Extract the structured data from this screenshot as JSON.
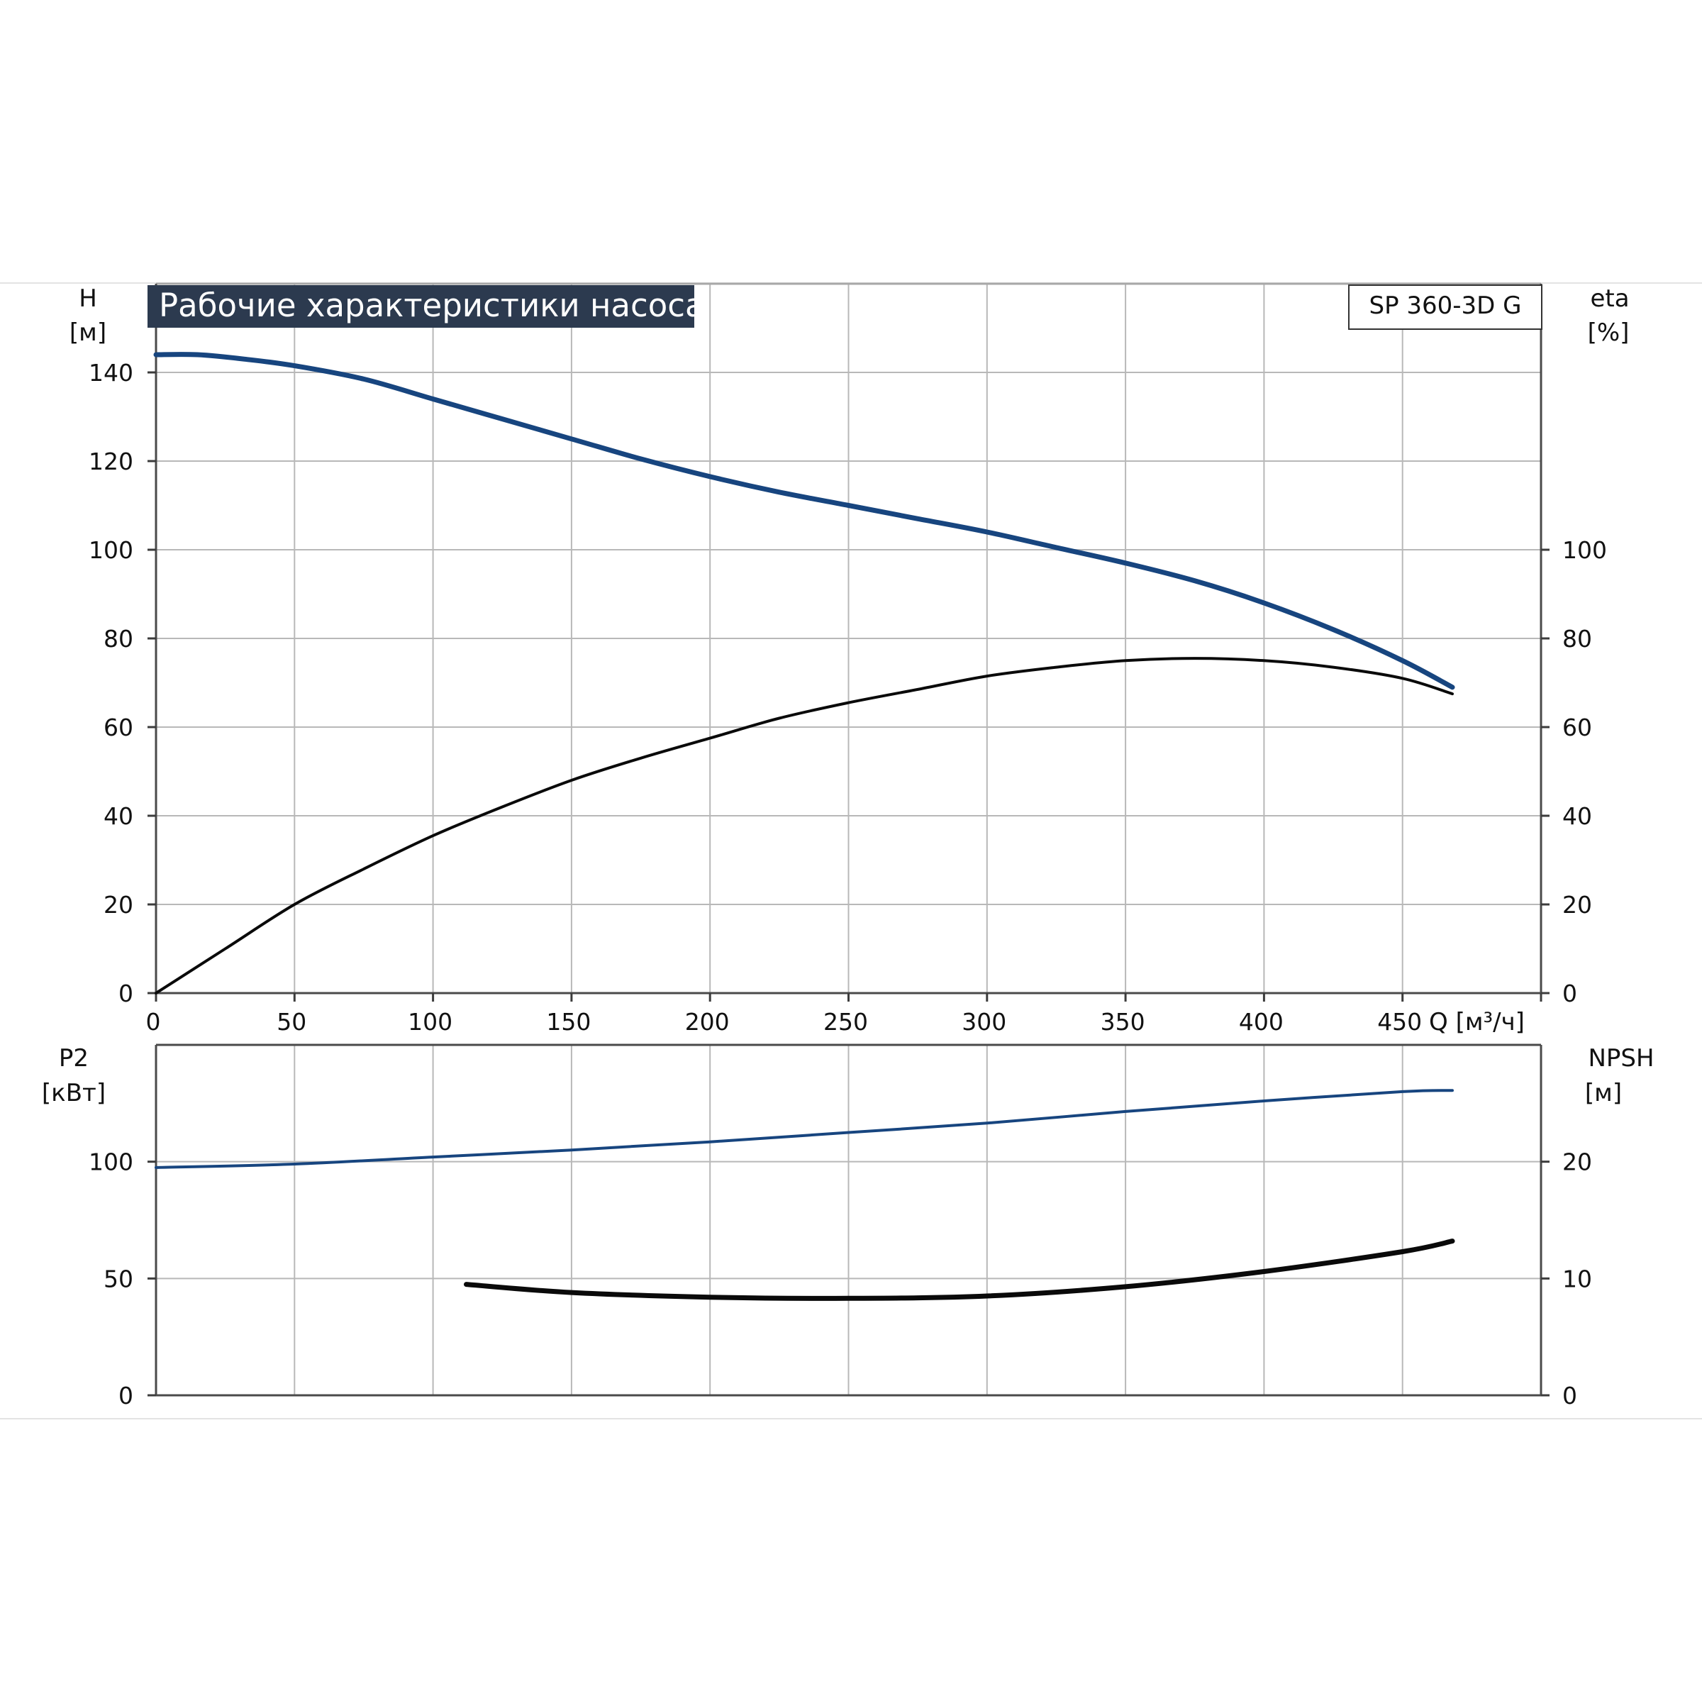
{
  "title": "Рабочие характеристики насоса",
  "model": "SP 360-3D G",
  "colors": {
    "blue_curve": "#17457f",
    "black_curve": "#0a0a0a",
    "title_bg": "#2c3a4f",
    "grid": "#b8b8b8"
  },
  "chart_data": [
    {
      "type": "line",
      "name": "upper",
      "x_label": "Q [м³/ч]",
      "xlim": [
        0,
        500
      ],
      "x_ticks": [
        0,
        50,
        100,
        150,
        200,
        250,
        300,
        350,
        400,
        450
      ],
      "y_left_label": "H",
      "y_left_unit": "[м]",
      "y_left_lim": [
        0,
        160
      ],
      "y_left_ticks": [
        0,
        20,
        40,
        60,
        80,
        100,
        120,
        140
      ],
      "y_right_label": "eta",
      "y_right_unit": "[%]",
      "y_right_lim": [
        0,
        160
      ],
      "y_right_ticks": [
        0,
        20,
        40,
        60,
        80,
        100
      ],
      "grid": true,
      "series": [
        {
          "axis": "left",
          "color": "#17457f",
          "points": [
            [
              0,
              144
            ],
            [
              15,
              144
            ],
            [
              32,
              143
            ],
            [
              50,
              141.5
            ],
            [
              75,
              138.5
            ],
            [
              100,
              134
            ],
            [
              125,
              129.5
            ],
            [
              150,
              125
            ],
            [
              175,
              120.5
            ],
            [
              200,
              116.5
            ],
            [
              225,
              113
            ],
            [
              250,
              110
            ],
            [
              275,
              107
            ],
            [
              300,
              104
            ],
            [
              325,
              100.5
            ],
            [
              350,
              97
            ],
            [
              375,
              93
            ],
            [
              400,
              88
            ],
            [
              425,
              82
            ],
            [
              450,
              75
            ],
            [
              468,
              69
            ]
          ]
        },
        {
          "axis": "right",
          "color": "#0a0a0a",
          "points": [
            [
              0,
              0
            ],
            [
              25,
              10
            ],
            [
              50,
              20
            ],
            [
              75,
              28
            ],
            [
              100,
              35.5
            ],
            [
              125,
              42
            ],
            [
              150,
              48
            ],
            [
              175,
              53
            ],
            [
              200,
              57.5
            ],
            [
              225,
              62
            ],
            [
              250,
              65.5
            ],
            [
              275,
              68.5
            ],
            [
              300,
              71.5
            ],
            [
              325,
              73.5
            ],
            [
              350,
              75
            ],
            [
              375,
              75.5
            ],
            [
              400,
              75
            ],
            [
              425,
              73.5
            ],
            [
              450,
              71
            ],
            [
              468,
              67.5
            ]
          ]
        }
      ]
    },
    {
      "type": "line",
      "name": "lower",
      "xlim": [
        0,
        500
      ],
      "y_left_label": "P2",
      "y_left_unit": "[кВт]",
      "y_left_lim": [
        0,
        150
      ],
      "y_left_ticks": [
        0,
        50,
        100
      ],
      "y_right_label": "NPSH",
      "y_right_unit": "[м]",
      "y_right_lim": [
        0,
        30
      ],
      "y_right_ticks": [
        0,
        10,
        20
      ],
      "grid": true,
      "series": [
        {
          "axis": "left",
          "color": "#17457f",
          "points": [
            [
              0,
              97.5
            ],
            [
              50,
              99
            ],
            [
              100,
              102
            ],
            [
              150,
              105
            ],
            [
              200,
              108.5
            ],
            [
              250,
              112.5
            ],
            [
              300,
              116.5
            ],
            [
              350,
              121.5
            ],
            [
              400,
              126
            ],
            [
              450,
              130
            ],
            [
              468,
              130.5
            ]
          ]
        },
        {
          "axis": "right",
          "color": "#0a0a0a",
          "points": [
            [
              112,
              9.5
            ],
            [
              150,
              8.8
            ],
            [
              200,
              8.4
            ],
            [
              250,
              8.3
            ],
            [
              300,
              8.5
            ],
            [
              350,
              9.3
            ],
            [
              400,
              10.6
            ],
            [
              450,
              12.3
            ],
            [
              468,
              13.2
            ]
          ]
        }
      ]
    }
  ]
}
